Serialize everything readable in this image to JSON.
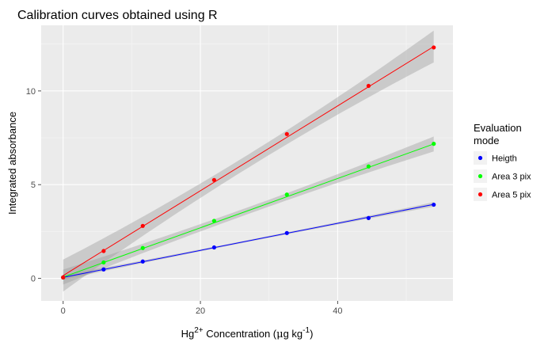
{
  "chart_data": {
    "type": "scatter",
    "title": "Calibration curves obtained using R",
    "xlabel": {
      "prefix": "Hg",
      "superscript": "2+",
      "middle": " Concentration (",
      "mu": "μ",
      "unit": "g kg",
      "unit_superscript": "-1",
      "suffix": ")"
    },
    "ylabel": "Integrated absorbance",
    "xlim": [
      -3.2,
      56.8
    ],
    "ylim": [
      -1.2,
      13.5
    ],
    "x_ticks": [
      0,
      20,
      40
    ],
    "x_tick_labels": [
      "0",
      "20",
      "40"
    ],
    "y_ticks": [
      0,
      5,
      10
    ],
    "y_tick_labels": [
      "0",
      "5",
      "10"
    ],
    "x": [
      0,
      5.9,
      11.6,
      22.0,
      32.6,
      44.5,
      54.0
    ],
    "legend": {
      "title_lines": [
        "Evaluation",
        "mode"
      ],
      "position": "right"
    },
    "series": [
      {
        "name": "Heigth",
        "color": "#0000ff",
        "values": [
          0.05,
          0.48,
          0.9,
          1.65,
          2.42,
          3.22,
          3.93
        ],
        "fit": {
          "intercept": 0.05,
          "slope": 0.0722
        },
        "ci_halfwidth": {
          "ends": 0.12,
          "center": 0.05
        }
      },
      {
        "name": "Area 3 pix",
        "color": "#00ff00",
        "values": [
          0.05,
          0.85,
          1.62,
          3.07,
          4.47,
          5.97,
          7.18
        ],
        "fit": {
          "intercept": 0.07,
          "slope": 0.1315
        },
        "ci_halfwidth": {
          "ends": 0.4,
          "center": 0.18
        }
      },
      {
        "name": "Area 5 pix",
        "color": "#ff0000",
        "values": [
          0.05,
          1.46,
          2.8,
          5.25,
          7.7,
          10.27,
          12.32
        ],
        "fit": {
          "intercept": 0.15,
          "slope": 0.2263
        },
        "ci_halfwidth": {
          "ends": 0.85,
          "center": 0.35
        }
      }
    ],
    "style": {
      "panel_bg": "#ebebeb",
      "grid_major": "#ffffff",
      "ci_fill": "#999999",
      "legend_key_bg": "#f2f2f2",
      "tick_color": "#4d4d4d"
    }
  }
}
